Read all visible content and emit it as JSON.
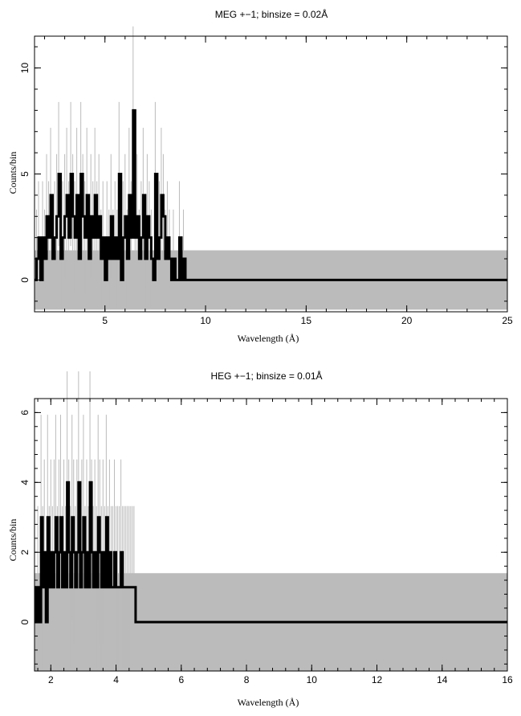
{
  "chart_data": [
    {
      "type": "line",
      "title": "MEG +−1; binsize = 0.02Å",
      "xlabel": "Wavelength (Å)",
      "ylabel": "Counts/bin",
      "xlim": [
        1.5,
        25
      ],
      "ylim": [
        -1.5,
        11.5
      ],
      "x_ticks": [
        5,
        10,
        15,
        20,
        25
      ],
      "y_ticks": [
        0,
        5,
        10
      ],
      "x_tick_labels": [
        "5",
        "10",
        "15",
        "20",
        "25"
      ],
      "y_tick_labels": [
        "0",
        "5",
        "10"
      ],
      "grid": false,
      "series": [
        {
          "role": "counts",
          "color": "#000000",
          "x": [
            1.5,
            1.6,
            1.7,
            1.8,
            1.9,
            2.0,
            2.1,
            2.2,
            2.3,
            2.4,
            2.5,
            2.6,
            2.7,
            2.8,
            2.9,
            3.0,
            3.1,
            3.2,
            3.3,
            3.4,
            3.5,
            3.6,
            3.7,
            3.8,
            3.9,
            4.0,
            4.1,
            4.2,
            4.3,
            4.4,
            4.5,
            4.6,
            4.7,
            4.8,
            4.9,
            5.0,
            5.1,
            5.2,
            5.3,
            5.4,
            5.5,
            5.6,
            5.7,
            5.8,
            5.9,
            6.0,
            6.1,
            6.2,
            6.3,
            6.4,
            6.5,
            6.6,
            6.7,
            6.8,
            6.9,
            7.0,
            7.1,
            7.2,
            7.3,
            7.4,
            7.5,
            7.6,
            7.7,
            7.8,
            7.9,
            8.0,
            8.1,
            8.2,
            8.3,
            8.4,
            8.5,
            8.6,
            8.7,
            8.8,
            8.9,
            9.0,
            25.0
          ],
          "y": [
            0,
            1,
            2,
            0,
            2,
            1,
            3,
            2,
            4,
            1,
            2,
            3,
            5,
            1,
            2,
            3,
            4,
            2,
            5,
            3,
            2,
            4,
            1,
            5,
            3,
            2,
            4,
            1,
            3,
            2,
            4,
            2,
            3,
            1,
            2,
            0,
            2,
            1,
            3,
            1,
            2,
            1,
            5,
            0,
            2,
            3,
            1,
            4,
            2,
            8,
            2,
            3,
            1,
            2,
            4,
            1,
            3,
            2,
            1,
            0,
            5,
            1,
            2,
            4,
            3,
            1,
            2,
            1,
            0,
            1,
            0,
            0,
            2,
            0,
            1,
            0,
            0
          ]
        },
        {
          "role": "error-upper",
          "color": "#bbbbbb",
          "x": [
            1.5,
            9.0,
            25.0
          ],
          "y": [
            1.4,
            1.4,
            1.4
          ]
        },
        {
          "role": "error-lower",
          "color": "#bbbbbb",
          "x": [
            1.5,
            9.0,
            25.0
          ],
          "y": [
            -1.4,
            -1.4,
            -1.4
          ]
        }
      ]
    },
    {
      "type": "line",
      "title": "HEG +−1; binsize = 0.01Å",
      "xlabel": "Wavelength (Å)",
      "ylabel": "Counts/bin",
      "xlim": [
        1.5,
        16
      ],
      "ylim": [
        -1.4,
        6.4
      ],
      "x_ticks": [
        2,
        4,
        6,
        8,
        10,
        12,
        14,
        16
      ],
      "y_ticks": [
        0,
        2,
        4,
        6
      ],
      "x_tick_labels": [
        "2",
        "4",
        "6",
        "8",
        "10",
        "12",
        "14",
        "16"
      ],
      "y_tick_labels": [
        "0",
        "2",
        "4",
        "6"
      ],
      "grid": false,
      "series": [
        {
          "role": "counts",
          "color": "#000000",
          "x": [
            1.5,
            1.55,
            1.6,
            1.65,
            1.7,
            1.75,
            1.8,
            1.85,
            1.9,
            1.95,
            2.0,
            2.05,
            2.1,
            2.15,
            2.2,
            2.25,
            2.3,
            2.35,
            2.4,
            2.45,
            2.5,
            2.55,
            2.6,
            2.65,
            2.7,
            2.75,
            2.8,
            2.85,
            2.9,
            2.95,
            3.0,
            3.05,
            3.1,
            3.15,
            3.2,
            3.25,
            3.3,
            3.35,
            3.4,
            3.45,
            3.5,
            3.55,
            3.6,
            3.65,
            3.7,
            3.75,
            3.8,
            3.85,
            3.9,
            3.95,
            4.0,
            4.05,
            4.1,
            4.15,
            4.2,
            4.25,
            4.3,
            4.35,
            4.4,
            4.45,
            4.5,
            4.55,
            4.6,
            16.0
          ],
          "y": [
            1,
            0,
            1,
            0,
            3,
            1,
            2,
            0,
            3,
            1,
            2,
            1,
            2,
            3,
            1,
            2,
            3,
            1,
            2,
            1,
            4,
            2,
            1,
            3,
            2,
            1,
            2,
            4,
            1,
            2,
            3,
            1,
            2,
            1,
            4,
            2,
            1,
            2,
            1,
            3,
            2,
            1,
            2,
            1,
            3,
            1,
            2,
            1,
            1,
            2,
            1,
            1,
            1,
            2,
            1,
            1,
            1,
            1,
            1,
            1,
            1,
            1,
            0,
            0
          ]
        },
        {
          "role": "error-upper",
          "color": "#bbbbbb",
          "x": [
            1.5,
            4.6,
            16.0
          ],
          "y": [
            1.4,
            1.4,
            1.4
          ]
        },
        {
          "role": "error-lower",
          "color": "#bbbbbb",
          "x": [
            1.5,
            4.6,
            16.0
          ],
          "y": [
            -1.4,
            -1.4,
            -1.4
          ]
        }
      ]
    }
  ]
}
